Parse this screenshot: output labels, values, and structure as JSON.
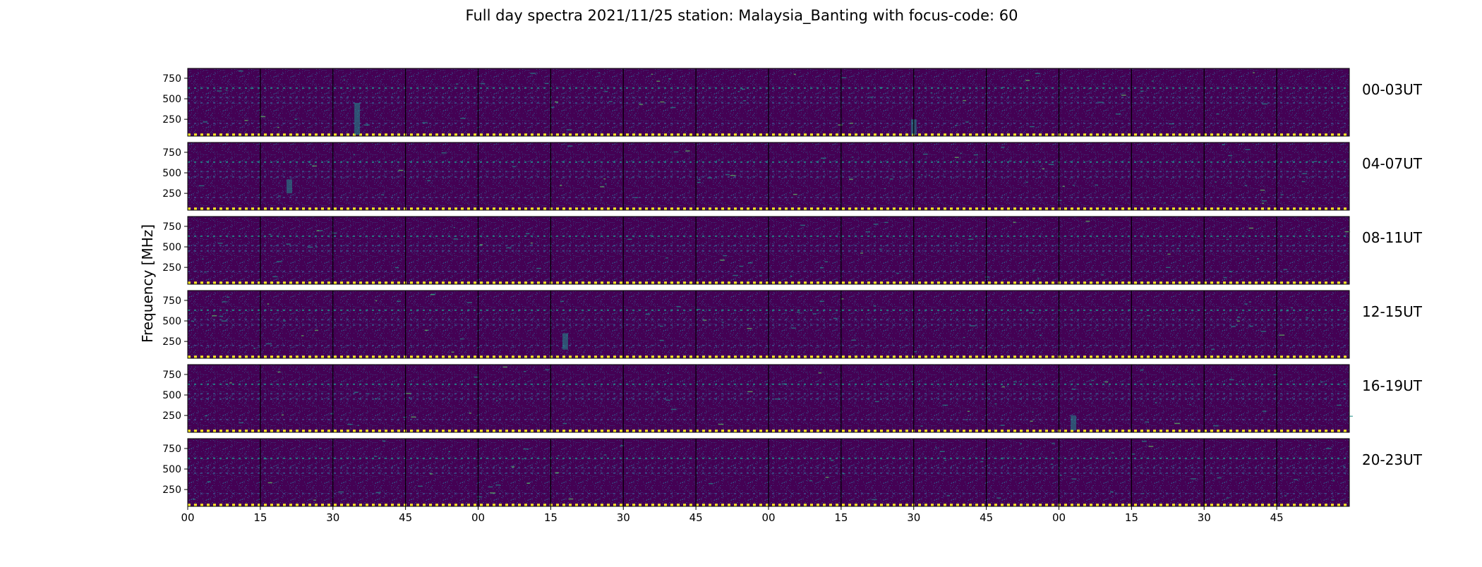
{
  "chart_data": {
    "type": "heatmap",
    "title": "Full day spectra 2021/11/25 station: Malaysia_Banting with focus-code: 60",
    "xlabel": "",
    "ylabel": "Frequency [MHz]",
    "colormap": "viridis",
    "colors": {
      "background": "#440154",
      "low": "#440154",
      "mid_low": "#3b528b",
      "mid": "#21918c",
      "mid_high": "#5ec962",
      "high": "#fde725",
      "separator": "#000000"
    },
    "yticks": [
      250,
      500,
      750
    ],
    "y_tick_labels": [
      "250",
      "500",
      "750"
    ],
    "ylim": [
      45,
      870
    ],
    "xticks": [
      "00",
      "15",
      "30",
      "45",
      "00",
      "15",
      "30",
      "45",
      "00",
      "15",
      "30",
      "45",
      "00",
      "15",
      "30",
      "45"
    ],
    "x_tick_minutes": [
      0,
      15,
      30,
      45,
      60,
      75,
      90,
      105,
      120,
      135,
      150,
      165,
      180,
      195,
      210,
      225
    ],
    "xlim_minutes": [
      0,
      240
    ],
    "panel_segment_minutes": 15,
    "rows": [
      {
        "label": "00-03UT",
        "start_hour": 0,
        "end_hour": 3
      },
      {
        "label": "04-07UT",
        "start_hour": 4,
        "end_hour": 7
      },
      {
        "label": "08-11UT",
        "start_hour": 8,
        "end_hour": 11
      },
      {
        "label": "12-15UT",
        "start_hour": 12,
        "end_hour": 15
      },
      {
        "label": "16-19UT",
        "start_hour": 16,
        "end_hour": 19
      },
      {
        "label": "20-23UT",
        "start_hour": 20,
        "end_hour": 23
      }
    ],
    "persistent_bands_mhz": [
      {
        "freq": 630,
        "intensity": "medium"
      },
      {
        "freq": 515,
        "intensity": "low-medium"
      },
      {
        "freq": 450,
        "intensity": "low-medium"
      },
      {
        "freq": 200,
        "intensity": "low"
      },
      {
        "freq": 60,
        "intensity": "high"
      }
    ],
    "notable_events": [
      {
        "row": "00-03UT",
        "minute_in_row": 35,
        "freq_range": [
          60,
          450
        ],
        "note": "broadband enhancement"
      },
      {
        "row": "00-03UT",
        "minute_in_row": 150,
        "freq_range": [
          60,
          250
        ],
        "note": "broadband enhancement"
      },
      {
        "row": "04-07UT",
        "minute_in_row": 21,
        "freq_range": [
          250,
          420
        ],
        "note": "enhanced bands"
      },
      {
        "row": "12-15UT",
        "minute_in_row": 78,
        "freq_range": [
          150,
          350
        ],
        "note": "broadband enhancement"
      },
      {
        "row": "16-19UT",
        "minute_in_row": 183,
        "freq_range": [
          70,
          250
        ],
        "note": "strong burst"
      }
    ]
  }
}
